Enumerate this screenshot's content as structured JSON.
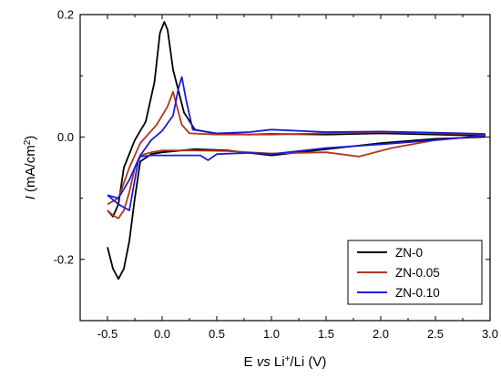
{
  "chart_data": {
    "type": "line",
    "xlabel_parts": [
      "E ",
      "vs",
      " Li",
      "+",
      "/Li (V)"
    ],
    "ylabel_parts": [
      "I",
      " (mA/cm",
      "2",
      ")"
    ],
    "xlim": [
      -0.75,
      3.0
    ],
    "ylim": [
      -0.3,
      0.2
    ],
    "xticks": [
      -0.5,
      0.0,
      0.5,
      1.0,
      1.5,
      2.0,
      2.5,
      3.0
    ],
    "xtick_labels": [
      "-0.5",
      "0.0",
      "0.5",
      "1.0",
      "1.5",
      "2.0",
      "2.5",
      "3.0"
    ],
    "yticks": [
      -0.2,
      0.0,
      0.2
    ],
    "ytick_labels": [
      "-0.2",
      "0.0",
      "0.2"
    ],
    "grid": false,
    "legend_position": "bottom-right",
    "series": [
      {
        "name": "ZN-0",
        "color": "#000000",
        "x": [
          -0.5,
          -0.45,
          -0.4,
          -0.35,
          -0.3,
          -0.25,
          -0.2,
          -0.1,
          0.0,
          0.3,
          0.6,
          1.0,
          1.5,
          2.0,
          2.5,
          2.95,
          2.95,
          2.5,
          2.0,
          1.5,
          1.0,
          0.8,
          0.5,
          0.3,
          0.2,
          0.1,
          0.05,
          0.02,
          -0.02,
          -0.07,
          -0.15,
          -0.25,
          -0.35,
          -0.4,
          -0.45,
          -0.5
        ],
        "y": [
          -0.18,
          -0.215,
          -0.232,
          -0.215,
          -0.17,
          -0.1,
          -0.04,
          -0.028,
          -0.025,
          -0.02,
          -0.022,
          -0.03,
          -0.02,
          -0.01,
          -0.003,
          0.0,
          0.002,
          0.004,
          0.006,
          0.004,
          0.005,
          0.004,
          0.005,
          0.012,
          0.04,
          0.11,
          0.175,
          0.188,
          0.17,
          0.09,
          0.025,
          -0.005,
          -0.05,
          -0.11,
          -0.13,
          -0.12
        ]
      },
      {
        "name": "ZN-0.05",
        "color": "#b1361e",
        "x": [
          -0.5,
          -0.45,
          -0.4,
          -0.35,
          -0.3,
          -0.25,
          -0.2,
          -0.1,
          0.0,
          0.3,
          0.6,
          1.0,
          1.5,
          1.8,
          2.1,
          2.5,
          2.95,
          2.95,
          2.5,
          2.0,
          1.5,
          1.0,
          0.5,
          0.25,
          0.18,
          0.12,
          0.1,
          0.05,
          -0.05,
          -0.2,
          -0.3,
          -0.4,
          -0.5
        ],
        "y": [
          -0.12,
          -0.128,
          -0.133,
          -0.12,
          -0.09,
          -0.05,
          -0.03,
          -0.025,
          -0.022,
          -0.022,
          -0.023,
          -0.027,
          -0.025,
          -0.032,
          -0.018,
          -0.005,
          0.002,
          0.004,
          0.006,
          0.008,
          0.006,
          0.004,
          0.004,
          0.006,
          0.02,
          0.06,
          0.074,
          0.05,
          0.02,
          -0.01,
          -0.05,
          -0.1,
          -0.11
        ]
      },
      {
        "name": "ZN-0.10",
        "color": "#1c1cd8",
        "x": [
          -0.5,
          -0.4,
          -0.3,
          -0.25,
          -0.22,
          -0.2,
          -0.1,
          0.0,
          0.2,
          0.35,
          0.42,
          0.5,
          0.8,
          1.0,
          1.5,
          2.0,
          2.5,
          2.95,
          2.95,
          2.5,
          2.0,
          1.5,
          1.0,
          0.8,
          0.5,
          0.28,
          0.22,
          0.18,
          0.15,
          0.1,
          0.0,
          -0.1,
          -0.2,
          -0.3,
          -0.4,
          -0.5
        ],
        "y": [
          -0.095,
          -0.11,
          -0.12,
          -0.07,
          -0.04,
          -0.032,
          -0.03,
          -0.03,
          -0.03,
          -0.03,
          -0.038,
          -0.028,
          -0.026,
          -0.028,
          -0.018,
          -0.012,
          -0.005,
          0.002,
          0.005,
          0.007,
          0.009,
          0.008,
          0.012,
          0.008,
          0.006,
          0.012,
          0.06,
          0.098,
          0.08,
          0.035,
          0.01,
          -0.005,
          -0.03,
          -0.07,
          -0.1,
          -0.095
        ]
      }
    ]
  }
}
